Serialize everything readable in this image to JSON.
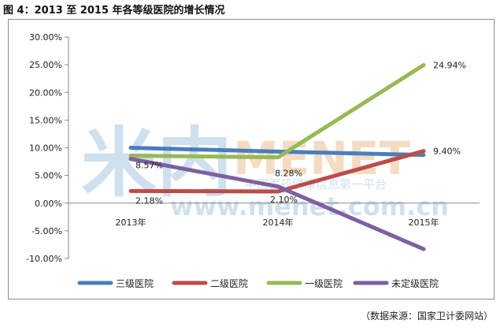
{
  "title": "图 4：2013 至 2015 年各等级医院的增长情况",
  "source": "（数据来源：国家卫计委网站）",
  "watermark": {
    "logo": "米内",
    "brand": "MENET",
    "slogan": "中国医药健康信息第一平台",
    "url": "www.menet.com.cn"
  },
  "colors": {
    "三级医院": "#4a7ebb",
    "二级医院": "#be4b48",
    "一级医院": "#98b954",
    "未定级医院": "#7d60a0",
    "watermark": "#cfe0ee",
    "watermark_orange": "#f4dcc4"
  },
  "chart_data": {
    "type": "line",
    "categories": [
      "2013年",
      "2014年",
      "2015年"
    ],
    "ylim": [
      -10,
      30
    ],
    "yticks": [
      -10,
      -5,
      0,
      5,
      10,
      15,
      20,
      25,
      30
    ],
    "ytick_labels": [
      "-10.00%",
      "-5.00%",
      "0.00%",
      "5.00%",
      "10.00%",
      "15.00%",
      "20.00%",
      "25.00%",
      "30.00%"
    ],
    "grid": false,
    "legend_position": "bottom",
    "series": [
      {
        "name": "三级医院",
        "values": [
          10.0,
          9.3,
          8.7
        ]
      },
      {
        "name": "二级医院",
        "values": [
          2.18,
          2.1,
          9.4
        ]
      },
      {
        "name": "一级医院",
        "values": [
          8.57,
          8.28,
          24.94
        ]
      },
      {
        "name": "未定级医院",
        "values": [
          8.0,
          3.0,
          -8.3
        ]
      }
    ],
    "data_labels": [
      {
        "series": "一级医院",
        "index": 0,
        "text": "8.57%"
      },
      {
        "series": "二级医院",
        "index": 0,
        "text": "2.18%"
      },
      {
        "series": "一级医院",
        "index": 1,
        "text": "8.28%"
      },
      {
        "series": "二级医院",
        "index": 1,
        "text": "2.10%"
      },
      {
        "series": "一级医院",
        "index": 2,
        "text": "24.94%"
      },
      {
        "series": "二级医院",
        "index": 2,
        "text": "9.40%"
      }
    ]
  }
}
